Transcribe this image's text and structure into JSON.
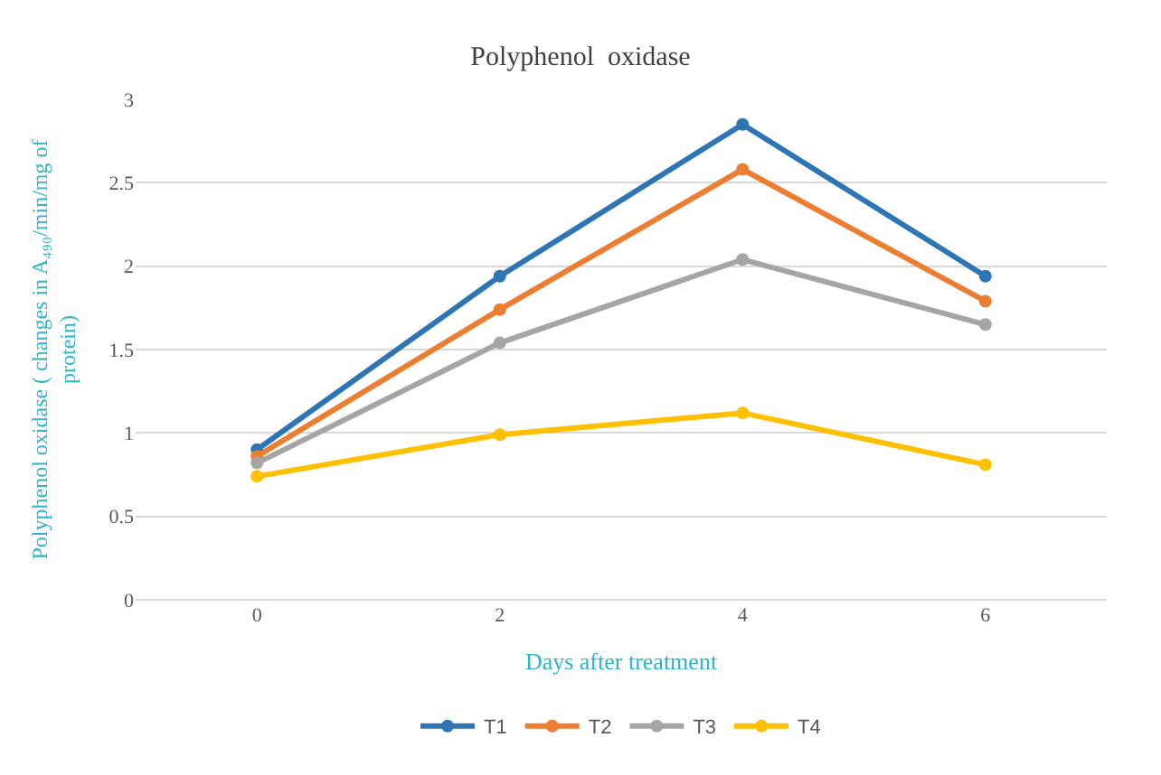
{
  "chart_data": {
    "type": "line",
    "title": "Polyphenol  oxidase",
    "xlabel": "Days after treatment",
    "ylabel": "Polyphenol oxidase ( changes in A₄₉₀/min/mg of protein)",
    "categories": [
      "0",
      "2",
      "4",
      "6"
    ],
    "series": [
      {
        "name": "T1",
        "color": "#2e75b6",
        "values": [
          0.9,
          1.94,
          2.85,
          1.94
        ]
      },
      {
        "name": "T2",
        "color": "#ed7d31",
        "values": [
          0.86,
          1.74,
          2.58,
          1.79
        ]
      },
      {
        "name": "T3",
        "color": "#a5a5a5",
        "values": [
          0.82,
          1.54,
          2.04,
          1.65
        ]
      },
      {
        "name": "T4",
        "color": "#ffc000",
        "values": [
          0.74,
          0.99,
          1.12,
          0.81
        ]
      }
    ],
    "ylim": [
      0,
      3
    ],
    "yticks": [
      0,
      0.5,
      1,
      1.5,
      2,
      2.5,
      3
    ],
    "grid": "y",
    "legend": "bottom",
    "marker": "circle",
    "line_style": "solid"
  }
}
